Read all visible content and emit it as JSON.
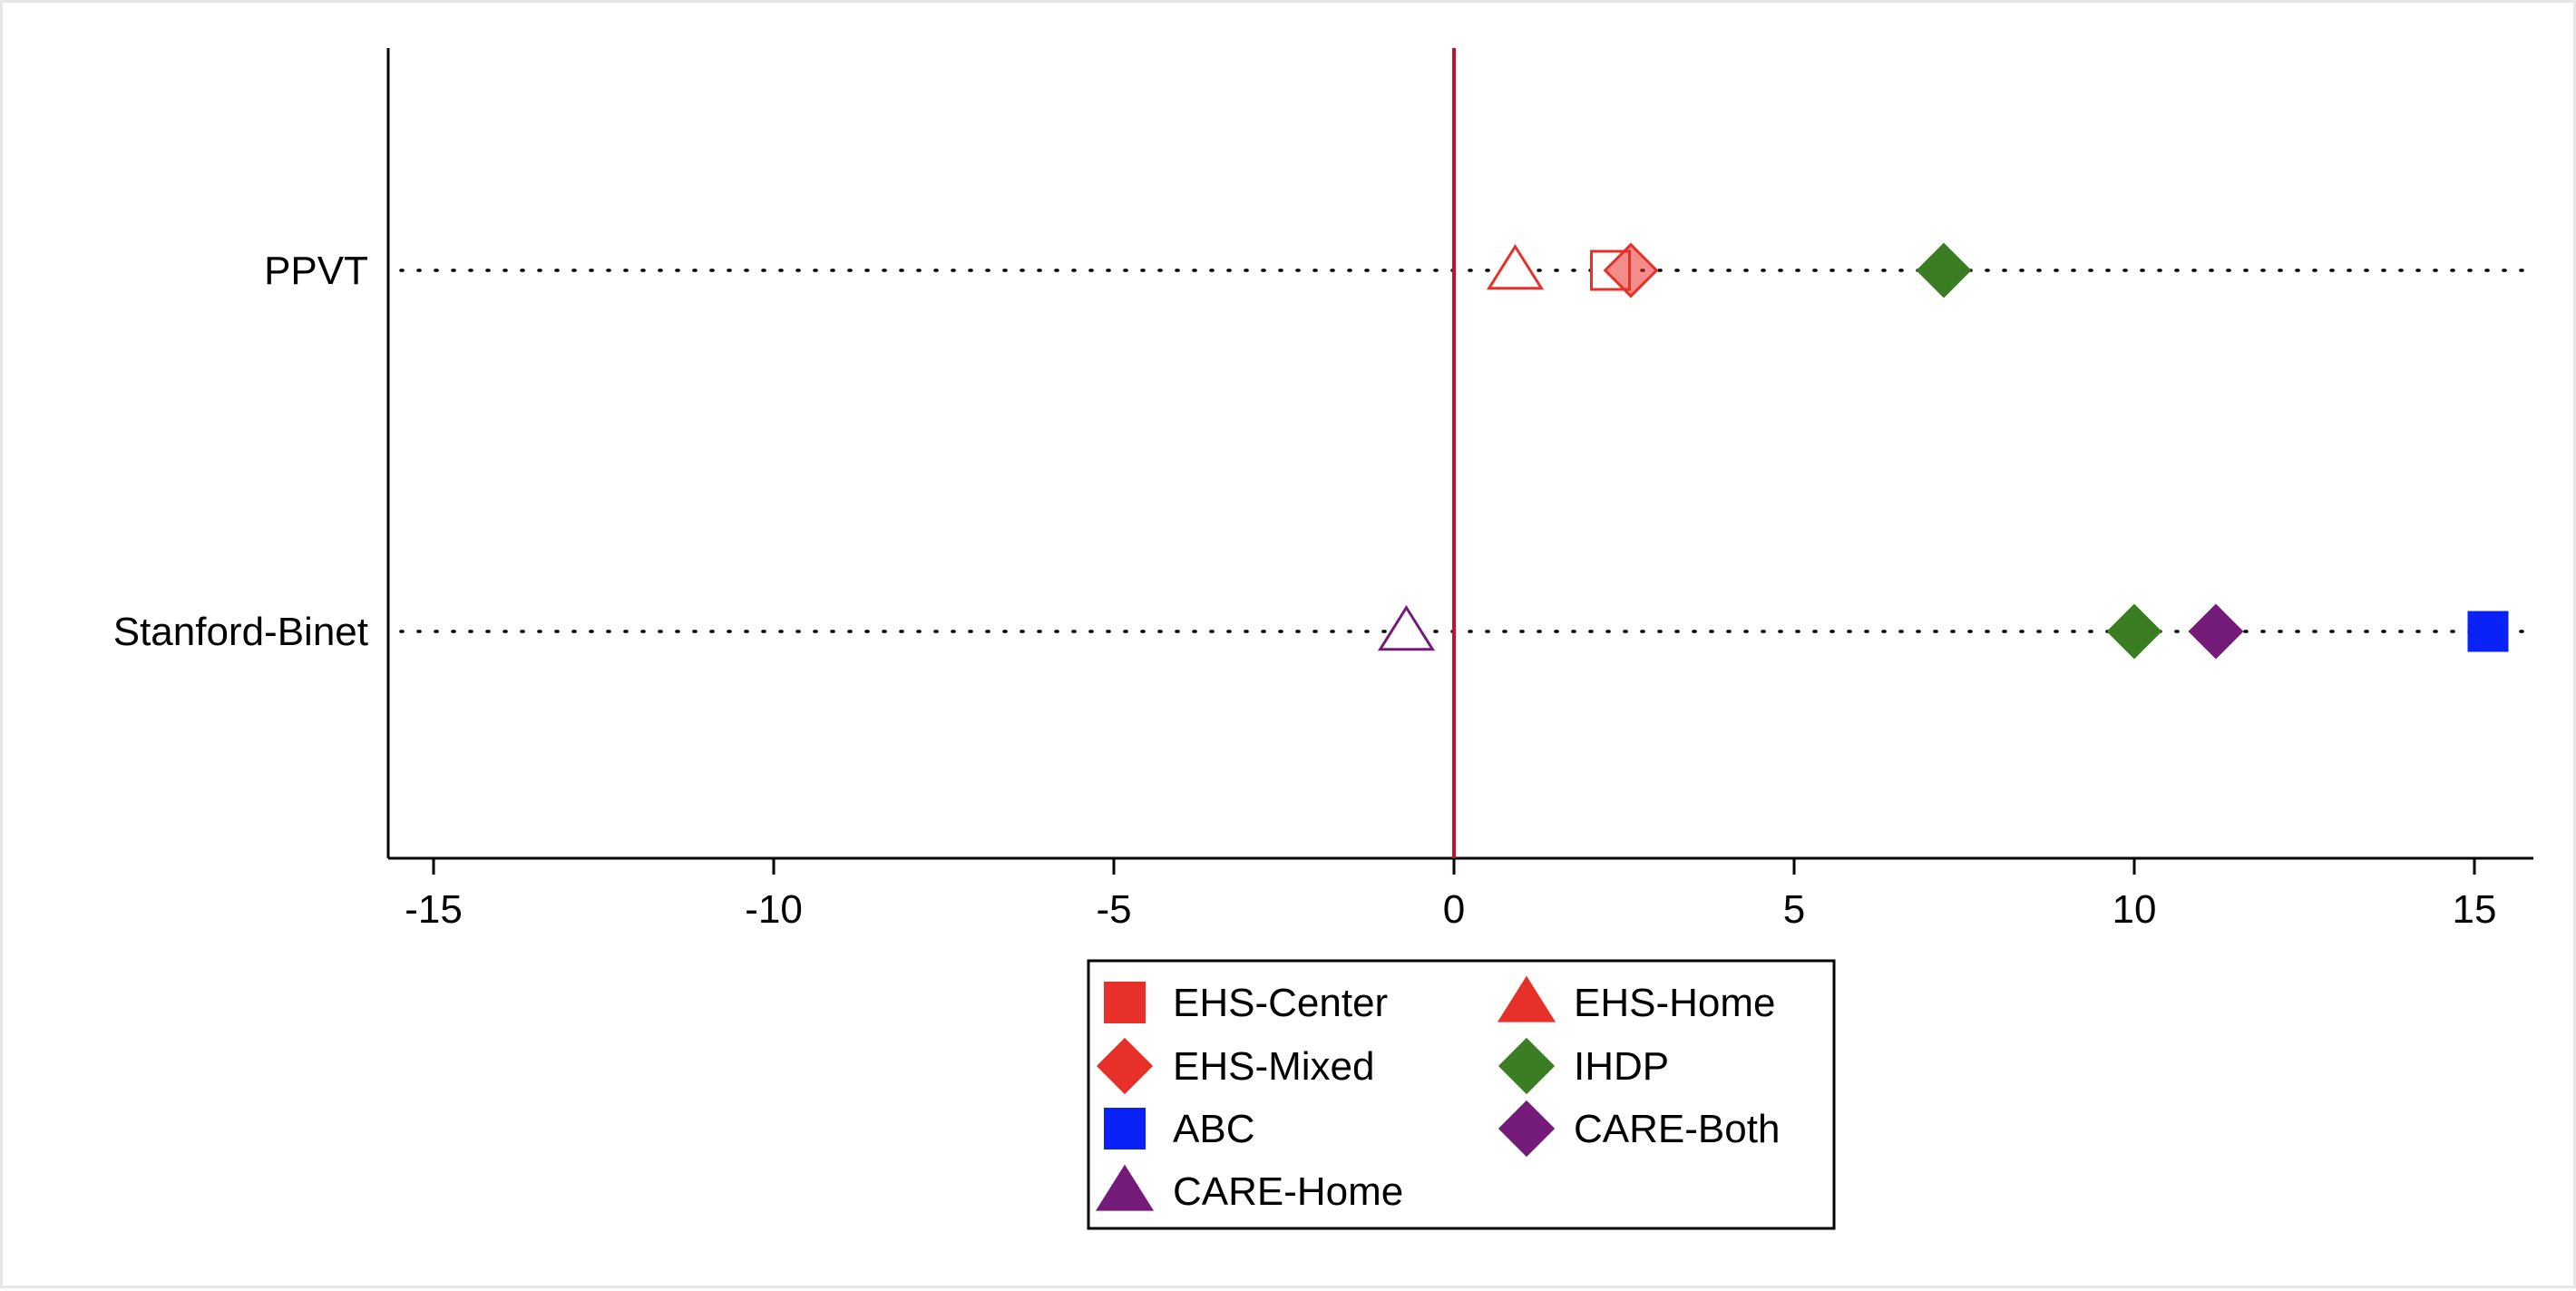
{
  "chart_data": {
    "type": "scatter",
    "title": "",
    "xlabel": "",
    "ylabel": "",
    "xlim": [
      -15.6,
      15.9
    ],
    "x_ticks": [
      -15,
      -10,
      -5,
      0,
      5,
      10,
      15
    ],
    "x_tick_labels": [
      "-15",
      "-10",
      "-5",
      "0",
      "5",
      "10",
      "15"
    ],
    "categories": [
      "PPVT",
      "Stanford-Binet"
    ],
    "reference_line": {
      "x": 0,
      "color": "#c0142e"
    },
    "grid": "dotted horizontal lines per category",
    "legend_position": "bottom",
    "series": [
      {
        "name": "EHS-Center",
        "marker": "square",
        "color": "#e8302a",
        "points": [
          {
            "category": "PPVT",
            "x": 2.3,
            "filled": false
          }
        ]
      },
      {
        "name": "EHS-Home",
        "marker": "triangle",
        "color": "#e8302a",
        "points": [
          {
            "category": "PPVT",
            "x": 0.9,
            "filled": false
          }
        ]
      },
      {
        "name": "EHS-Mixed",
        "marker": "diamond",
        "color": "#e8302a",
        "points": [
          {
            "category": "PPVT",
            "x": 2.6,
            "filled": "light"
          }
        ]
      },
      {
        "name": "IHDP",
        "marker": "diamond",
        "color": "#3a7d23",
        "points": [
          {
            "category": "PPVT",
            "x": 7.2,
            "filled": true
          },
          {
            "category": "Stanford-Binet",
            "x": 10.0,
            "filled": true
          }
        ]
      },
      {
        "name": "ABC",
        "marker": "square",
        "color": "#0a22f5",
        "points": [
          {
            "category": "Stanford-Binet",
            "x": 15.2,
            "filled": true
          }
        ]
      },
      {
        "name": "CARE-Both",
        "marker": "diamond",
        "color": "#741a78",
        "points": [
          {
            "category": "Stanford-Binet",
            "x": 11.2,
            "filled": true
          }
        ]
      },
      {
        "name": "CARE-Home",
        "marker": "triangle",
        "color": "#741a78",
        "points": [
          {
            "category": "Stanford-Binet",
            "x": -0.7,
            "filled": false
          }
        ]
      }
    ]
  },
  "legend": {
    "items": [
      {
        "label": "EHS-Center",
        "marker": "square",
        "color": "#e8302a"
      },
      {
        "label": "EHS-Home",
        "marker": "triangle",
        "color": "#e8302a"
      },
      {
        "label": "EHS-Mixed",
        "marker": "diamond",
        "color": "#e8302a"
      },
      {
        "label": "IHDP",
        "marker": "diamond",
        "color": "#3a7d23"
      },
      {
        "label": "ABC",
        "marker": "square",
        "color": "#0a22f5"
      },
      {
        "label": "CARE-Both",
        "marker": "diamond",
        "color": "#741a78"
      },
      {
        "label": "CARE-Home",
        "marker": "triangle",
        "color": "#741a78"
      }
    ]
  }
}
